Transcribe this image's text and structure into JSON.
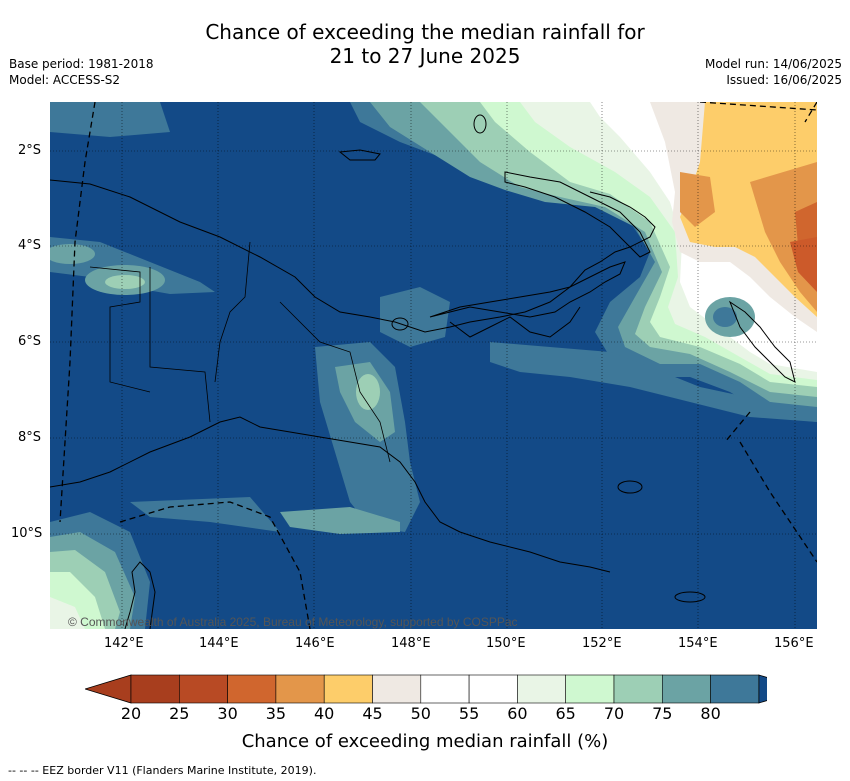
{
  "title_line1": "Chance of exceeding the median rainfall for",
  "title_line2": "21 to 27 June 2025",
  "base_period": "Base period: 1981-2018",
  "model": "Model: ACCESS-S2",
  "model_run": "Model run: 14/06/2025",
  "issued": "Issued: 16/06/2025",
  "lon_ticks": [
    "142°E",
    "144°E",
    "146°E",
    "148°E",
    "150°E",
    "152°E",
    "154°E",
    "156°E"
  ],
  "lat_ticks": [
    "2°S",
    "4°S",
    "6°S",
    "8°S",
    "10°S"
  ],
  "copyright": "© Commonwealth of Australia 2025, Bureau of Meteorology, supported by COSPPac",
  "colorbar": {
    "labels": [
      "20",
      "25",
      "30",
      "35",
      "40",
      "45",
      "50",
      "55",
      "60",
      "65",
      "70",
      "75",
      "80"
    ],
    "colors": [
      "#a83e1e",
      "#b84a24",
      "#d0662e",
      "#e3964a",
      "#fdcd6a",
      "#efe9e3",
      "#ffffff",
      "#ffffff",
      "#e9f5e6",
      "#cff8d0",
      "#9dcfb5",
      "#6ba3a4",
      "#3e7899"
    ],
    "under_color": "#a83e1e",
    "over_color": "#134a87",
    "title": "Chance of exceeding median rainfall (%)"
  },
  "legend_footer": "-- -- -- EEZ border V11 (Flanders Marine Institute, 2019)."
}
